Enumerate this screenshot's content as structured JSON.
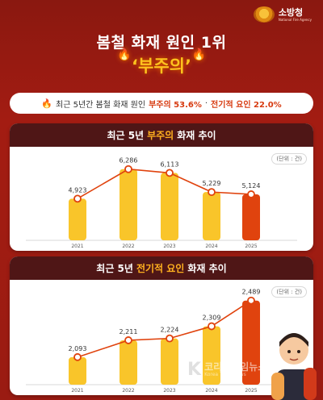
{
  "brand": {
    "name": "소방청",
    "subtitle": "National Fire Agency",
    "icon": "fire-agency-emblem-icon"
  },
  "headline": "봄철 화재 원인 1위",
  "highlight": "‘부주의’",
  "stat": {
    "prefix": "최근 5년간 봄철 화재 원인",
    "text1": "부주의 53.6%",
    "sep": "·",
    "text2": "전기적 요인 22.0%"
  },
  "panels": [
    {
      "title_prefix": "최근 5년",
      "title_hl": "부주의",
      "title_suffix": "화재 추이",
      "unit": "(단위 : 건)"
    },
    {
      "title_prefix": "최근 5년",
      "title_hl": "전기적 요인",
      "title_suffix": "화재 추이",
      "unit": "(단위 : 건)"
    }
  ],
  "watermark": {
    "logo": "K",
    "line1": "코리아타임뉴스",
    "line2": "Korea Time News"
  },
  "colors": {
    "bar": "#f9c52a",
    "bar_last": "#e0430e",
    "line": "#e0430e",
    "header": "#4f1616",
    "accent": "#ffb11f"
  },
  "chart_data": [
    {
      "type": "bar",
      "title": "최근 5년 부주의 화재 추이",
      "categories": [
        "2021",
        "2022",
        "2023",
        "2024",
        "2025"
      ],
      "values": [
        4923,
        6286,
        6113,
        5229,
        5124
      ],
      "value_labels": [
        "4,923",
        "6,286",
        "6,113",
        "5,229",
        "5,124"
      ],
      "overlay": "line",
      "ylim": [
        3000,
        6500
      ]
    },
    {
      "type": "bar",
      "title": "최근 5년 전기적 요인 화재 추이",
      "categories": [
        "2021",
        "2022",
        "2023",
        "2024",
        "2025"
      ],
      "values": [
        2093,
        2211,
        2224,
        2309,
        2489
      ],
      "value_labels": [
        "2,093",
        "2,211",
        "2,224",
        "2,309",
        "2,489"
      ],
      "overlay": "line",
      "ylim": [
        1900,
        2510
      ]
    }
  ]
}
